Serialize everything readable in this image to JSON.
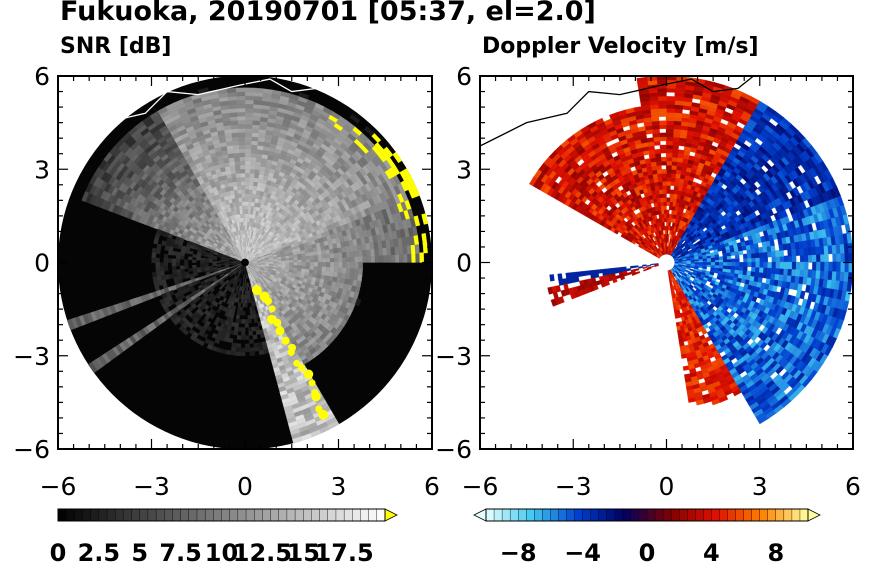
{
  "title": "Fukuoka, 20190701 [05:37, el=2.0]",
  "panels": [
    {
      "subtitle": "SNR [dB]"
    },
    {
      "subtitle": "Doppler Velocity [m/s]"
    }
  ],
  "colorbar_snr": {
    "tick_labels": [
      "0",
      "2.5",
      "5",
      "7.5",
      "10",
      "12.5",
      "15",
      "17.5"
    ],
    "range": [
      0,
      20
    ],
    "levels": 40,
    "colors": [
      "#000000",
      "#ffffff",
      "#ffff00"
    ]
  },
  "colorbar_velocity": {
    "tick_labels": [
      "−8",
      "−4",
      "0",
      "4",
      "8"
    ],
    "range": [
      -10,
      10
    ],
    "levels": 40,
    "colors": [
      "#e8ffff",
      "#40c8f0",
      "#0040d0",
      "#000060",
      "#800000",
      "#e01000",
      "#ff8000",
      "#ffffa0"
    ]
  },
  "chart_data": [
    {
      "type": "heatmap",
      "title": "SNR [dB]",
      "x_ticks": [
        "−6",
        "−3",
        "0",
        "3",
        "6"
      ],
      "y_ticks": [
        "6",
        "3",
        "0",
        "−3",
        "−6"
      ],
      "xlim": [
        -6,
        6
      ],
      "ylim": [
        -6,
        6
      ],
      "max_range": 6,
      "units": "dB"
    },
    {
      "type": "heatmap",
      "title": "Doppler Velocity [m/s]",
      "x_ticks": [
        "−6",
        "−3",
        "0",
        "3",
        "6"
      ],
      "y_ticks": [
        "6",
        "3",
        "0",
        "−3",
        "−6"
      ],
      "xlim": [
        -6,
        6
      ],
      "ylim": [
        -6,
        6
      ],
      "max_range": 6,
      "units": "m/s"
    }
  ]
}
